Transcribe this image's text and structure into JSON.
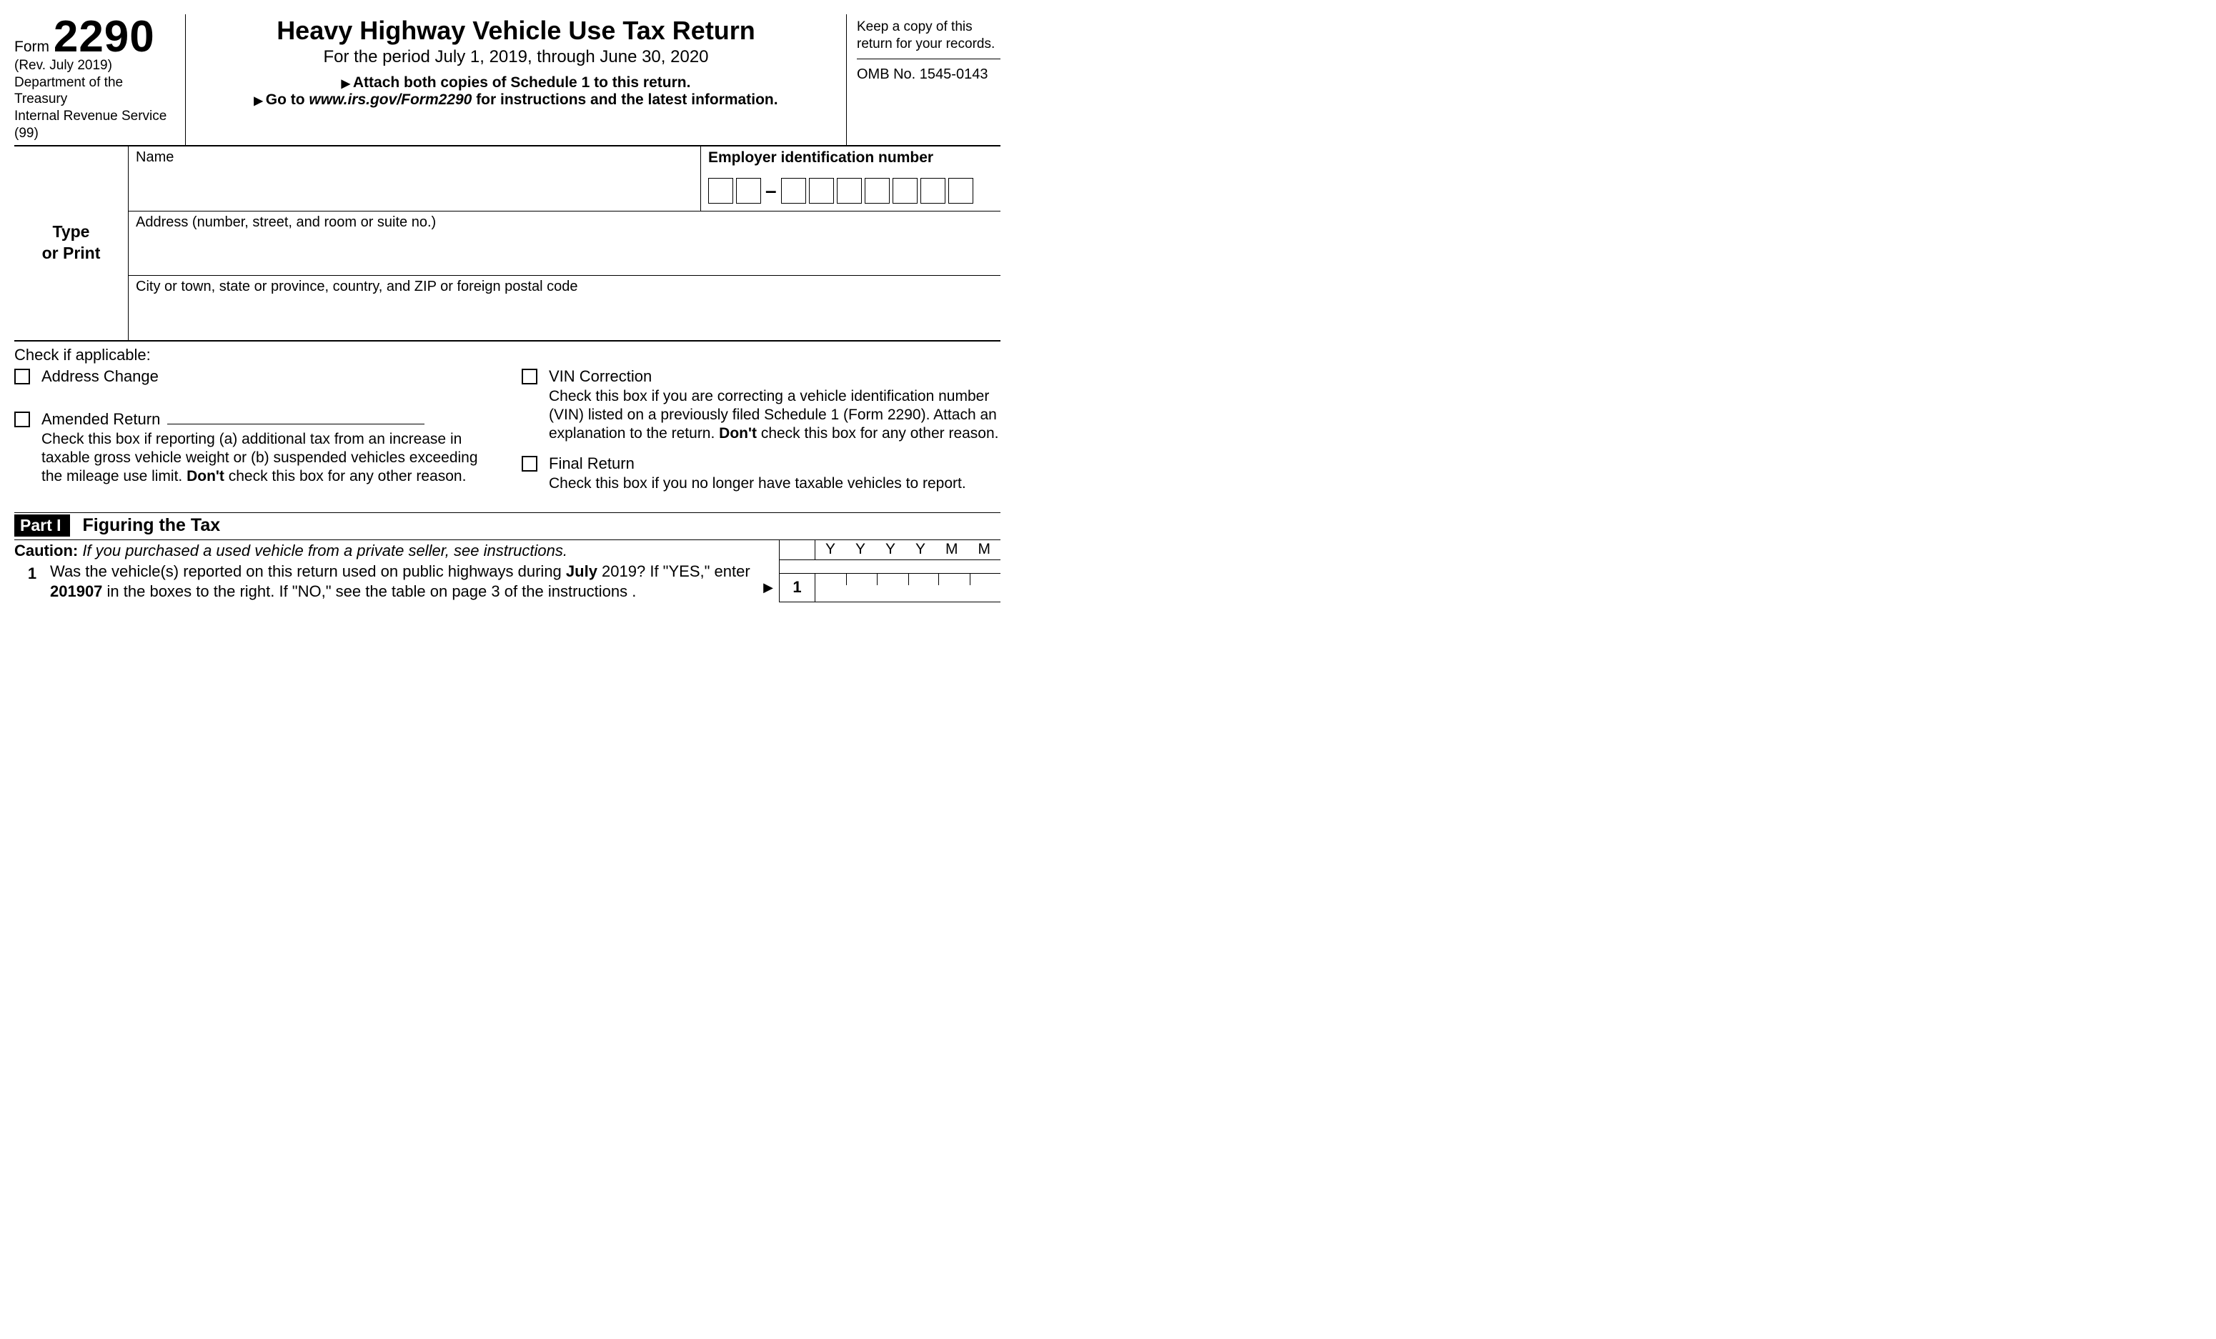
{
  "header": {
    "form_word": "Form",
    "form_number": "2290",
    "revision": "(Rev. July 2019)",
    "dept": "Department of the Treasury",
    "irs": "Internal Revenue Service (99)",
    "title": "Heavy Highway Vehicle Use Tax Return",
    "period": "For the period July 1, 2019, through June 30, 2020",
    "attach": "Attach both copies of Schedule 1 to this return.",
    "goto_pre": "Go to ",
    "goto_url": "www.irs.gov/Form2290",
    "goto_post": " for instructions and the latest information.",
    "keep_copy": "Keep a copy of this return for your records.",
    "omb": "OMB No. 1545-0143"
  },
  "typeprint": {
    "label_line1": "Type",
    "label_line2": "or Print",
    "name_label": "Name",
    "ein_label": "Employer identification number",
    "address_label": "Address (number, street, and room or suite no.)",
    "city_label": "City or town, state or province, country, and ZIP or foreign postal code"
  },
  "checks": {
    "heading": "Check if applicable:",
    "address_change": "Address Change",
    "amended_label": "Amended Return",
    "amended_desc_1": "Check this box if reporting (a) additional tax from an increase in taxable gross vehicle weight or (b) suspended vehicles exceeding the mileage use limit. ",
    "amended_dont": "Don't",
    "amended_desc_2": " check this box for any other reason.",
    "vin_label": "VIN Correction",
    "vin_desc_1": "Check this box if you are correcting a vehicle identification number (VIN) listed on a previously filed Schedule 1 (Form 2290). Attach an explanation to the return. ",
    "vin_dont": "Don't",
    "vin_desc_2": " check this box for any other reason.",
    "final_label": "Final Return",
    "final_desc": "Check this box if you no longer have taxable vehicles to report."
  },
  "part1": {
    "badge": "Part I",
    "title": "Figuring the Tax",
    "caution_label": "Caution:",
    "caution_text": " If you purchased a used vehicle from a private seller, see instructions.",
    "line1_num": "1",
    "line1_a": "Was the vehicle(s) reported on this return used on public highways during ",
    "line1_july": "July",
    "line1_b": " 2019? If \"YES,\" enter ",
    "line1_code": "201907",
    "line1_c": " in the boxes to the right. If \"NO,\" see the table on page 3 of the instructions .",
    "yymm_letters": [
      "Y",
      "Y",
      "Y",
      "Y",
      "M",
      "M"
    ],
    "right_num": "1"
  }
}
